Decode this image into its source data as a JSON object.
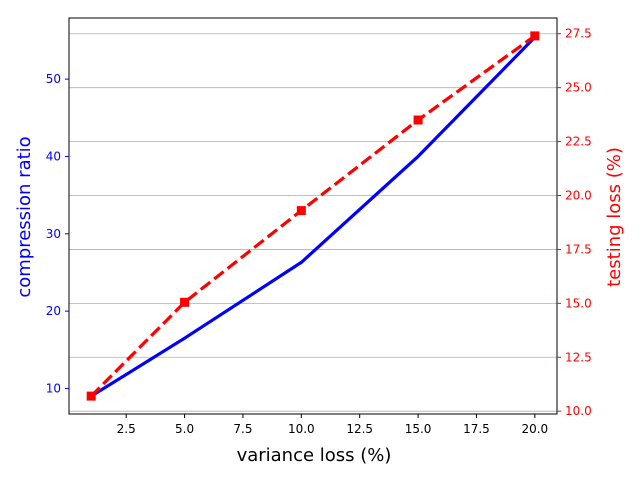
{
  "chart_data": {
    "type": "line",
    "x": [
      1,
      5,
      10,
      15,
      20
    ],
    "xlabel": "variance loss (%)",
    "xlim": [
      0.05,
      20.95
    ],
    "xticks": [
      "2.5",
      "5.0",
      "7.5",
      "10.0",
      "12.5",
      "15.0",
      "17.5",
      "20.0"
    ],
    "xtick_values": [
      2.5,
      5.0,
      7.5,
      10.0,
      12.5,
      15.0,
      17.5,
      20.0
    ],
    "grid": "horizontal, right axis",
    "left_axis": {
      "label": "compression ratio",
      "color": "#0000ff",
      "ylim": [
        6.7,
        57.9
      ],
      "ticks": [
        "10",
        "20",
        "30",
        "40",
        "50"
      ],
      "tick_values": [
        10,
        20,
        30,
        40,
        50
      ]
    },
    "right_axis": {
      "label": "testing loss (%)",
      "color": "#ff0000",
      "ylim": [
        9.87,
        28.23
      ],
      "ticks": [
        "10.0",
        "12.5",
        "15.0",
        "17.5",
        "20.0",
        "22.5",
        "25.0",
        "27.5"
      ],
      "tick_values": [
        10.0,
        12.5,
        15.0,
        17.5,
        20.0,
        22.5,
        25.0,
        27.5
      ]
    },
    "series": [
      {
        "axis": "left",
        "color": "#0000ff",
        "style": "solid",
        "marker": "none",
        "values": [
          9.0,
          16.5,
          26.3,
          40.0,
          55.4
        ]
      },
      {
        "axis": "right",
        "color": "#ff0000",
        "style": "dashed",
        "marker": "square",
        "values": [
          10.7,
          15.05,
          19.3,
          23.5,
          27.4
        ]
      }
    ]
  }
}
